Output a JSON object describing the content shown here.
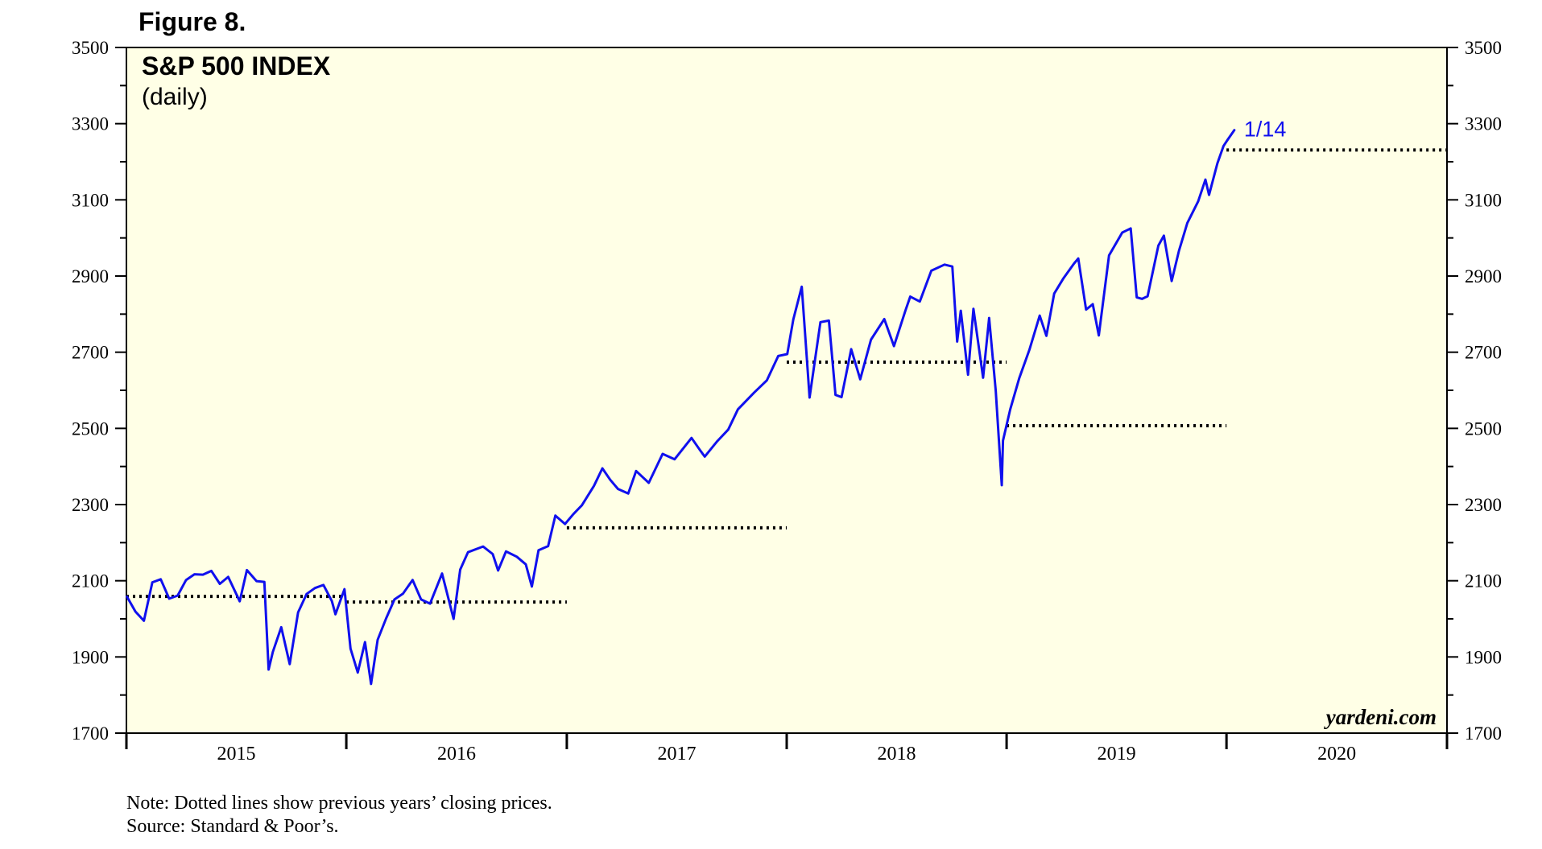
{
  "figure_label": "Figure 8.",
  "notes": [
    "Note: Dotted lines show previous years’ closing prices.",
    "Source: Standard & Poor’s."
  ],
  "credit": "yardeni.com",
  "colors": {
    "plot_bg": "#ffffe6",
    "line": "#1010ee",
    "reference": "#000000"
  },
  "chart_data": {
    "type": "line",
    "title": "S&P 500 INDEX",
    "subtitle": "(daily)",
    "xlim": [
      "2015-01-01",
      "2021-01-01"
    ],
    "ylim": [
      1700,
      3500
    ],
    "y_ticks": [
      1700,
      1900,
      2100,
      2300,
      2500,
      2700,
      2900,
      3100,
      3300,
      3500
    ],
    "y_minor_step": 100,
    "x_year_labels": [
      "2015",
      "2016",
      "2017",
      "2018",
      "2019",
      "2020"
    ],
    "grid": false,
    "axes": "left-and-right",
    "annotation": {
      "text": "1/14",
      "date": "2020-01-14",
      "value": 3283
    },
    "reference_lines": [
      {
        "from": "2015-01-01",
        "to": "2016-01-01",
        "value": 2059
      },
      {
        "from": "2016-01-01",
        "to": "2017-01-01",
        "value": 2044
      },
      {
        "from": "2017-01-01",
        "to": "2018-01-01",
        "value": 2239
      },
      {
        "from": "2018-01-01",
        "to": "2019-01-01",
        "value": 2674
      },
      {
        "from": "2019-01-01",
        "to": "2020-01-01",
        "value": 2507
      },
      {
        "from": "2020-01-01",
        "to": "2021-01-01",
        "value": 3231
      }
    ],
    "series": [
      {
        "x": [
          "2015-01-02",
          "2015-01-16",
          "2015-01-30",
          "2015-02-13",
          "2015-02-27",
          "2015-03-13",
          "2015-03-27",
          "2015-04-10",
          "2015-04-24",
          "2015-05-08",
          "2015-05-22",
          "2015-06-05",
          "2015-06-19",
          "2015-07-08",
          "2015-07-20",
          "2015-08-05",
          "2015-08-18",
          "2015-08-25",
          "2015-09-01",
          "2015-09-15",
          "2015-09-29",
          "2015-10-13",
          "2015-10-27",
          "2015-11-10",
          "2015-11-24",
          "2015-12-08",
          "2015-12-14",
          "2015-12-29",
          "2016-01-08",
          "2016-01-20",
          "2016-02-01",
          "2016-02-11",
          "2016-02-22",
          "2016-03-07",
          "2016-03-21",
          "2016-04-04",
          "2016-04-20",
          "2016-05-04",
          "2016-05-19",
          "2016-06-08",
          "2016-06-27",
          "2016-07-08",
          "2016-07-21",
          "2016-08-15",
          "2016-08-31",
          "2016-09-09",
          "2016-09-22",
          "2016-10-10",
          "2016-10-25",
          "2016-11-04",
          "2016-11-15",
          "2016-12-01",
          "2016-12-13",
          "2016-12-29",
          "2017-01-12",
          "2017-01-26",
          "2017-02-15",
          "2017-03-01",
          "2017-03-14",
          "2017-03-27",
          "2017-04-13",
          "2017-04-26",
          "2017-05-17",
          "2017-06-09",
          "2017-06-29",
          "2017-07-27",
          "2017-08-11",
          "2017-08-18",
          "2017-09-07",
          "2017-09-26",
          "2017-10-12",
          "2017-11-08",
          "2017-11-29",
          "2017-12-18",
          "2018-01-02",
          "2018-01-12",
          "2018-01-26",
          "2018-02-05",
          "2018-02-08",
          "2018-02-26",
          "2018-03-12",
          "2018-03-23",
          "2018-04-02",
          "2018-04-18",
          "2018-05-03",
          "2018-05-21",
          "2018-06-12",
          "2018-06-28",
          "2018-07-17",
          "2018-07-25",
          "2018-08-10",
          "2018-08-29",
          "2018-09-20",
          "2018-10-03",
          "2018-10-11",
          "2018-10-17",
          "2018-10-29",
          "2018-11-07",
          "2018-11-23",
          "2018-12-03",
          "2018-12-14",
          "2018-12-24",
          "2018-12-26",
          "2019-01-07",
          "2019-01-22",
          "2019-02-08",
          "2019-02-25",
          "2019-03-08",
          "2019-03-21",
          "2019-04-05",
          "2019-04-23",
          "2019-04-30",
          "2019-05-13",
          "2019-05-24",
          "2019-06-03",
          "2019-06-20",
          "2019-07-12",
          "2019-07-26",
          "2019-08-05",
          "2019-08-14",
          "2019-08-23",
          "2019-09-10",
          "2019-09-19",
          "2019-10-02",
          "2019-10-14",
          "2019-10-28",
          "2019-11-15",
          "2019-11-27",
          "2019-12-03",
          "2019-12-17",
          "2019-12-27",
          "2020-01-03",
          "2020-01-10",
          "2020-01-14"
        ],
        "values": [
          2058,
          2019,
          1995,
          2096,
          2104,
          2053,
          2061,
          2102,
          2117,
          2116,
          2126,
          2092,
          2110,
          2046,
          2128,
          2099,
          2097,
          1867,
          1913,
          1978,
          1881,
          2017,
          2065,
          2081,
          2089,
          2047,
          2012,
          2078,
          1922,
          1859,
          1939,
          1829,
          1945,
          2001,
          2051,
          2066,
          2102,
          2051,
          2040,
          2119,
          2000,
          2129,
          2175,
          2190,
          2170,
          2127,
          2177,
          2163,
          2143,
          2085,
          2180,
          2191,
          2271,
          2249,
          2275,
          2298,
          2349,
          2395,
          2365,
          2341,
          2329,
          2388,
          2357,
          2433,
          2419,
          2475,
          2441,
          2426,
          2465,
          2497,
          2550,
          2594,
          2626,
          2690,
          2695,
          2786,
          2872,
          2648,
          2581,
          2779,
          2783,
          2588,
          2582,
          2708,
          2629,
          2733,
          2787,
          2716,
          2809,
          2846,
          2833,
          2914,
          2930,
          2925,
          2728,
          2809,
          2641,
          2814,
          2633,
          2790,
          2599,
          2351,
          2468,
          2550,
          2632,
          2707,
          2796,
          2743,
          2854,
          2893,
          2933,
          2946,
          2812,
          2826,
          2744,
          2954,
          3014,
          3025,
          2844,
          2840,
          2847,
          2980,
          3006,
          2887,
          2966,
          3039,
          3096,
          3153,
          3113,
          3196,
          3241,
          3258,
          3274,
          3283
        ]
      }
    ]
  }
}
